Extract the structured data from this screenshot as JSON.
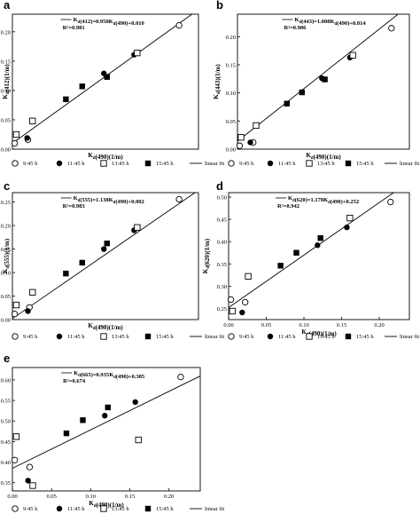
{
  "legend_items": [
    {
      "label": "9:45 h",
      "marker": "open-circle"
    },
    {
      "label": "11:45 h",
      "marker": "filled-circle"
    },
    {
      "label": "13:45 h",
      "marker": "open-square"
    },
    {
      "label": "15:45 h",
      "marker": "filled-square"
    },
    {
      "label": "linear fit",
      "marker": "line"
    }
  ],
  "chart_data": [
    {
      "panel": "a",
      "type": "scatter",
      "equation": "K_d(412)=0.950K_d(490)+0.010",
      "r2": "R²=0.981",
      "xlabel": "K_d(490)(1/m)",
      "ylabel": "K_d(412)(1/m)",
      "xlim": [
        0.0,
        0.24
      ],
      "ylim": [
        0.0,
        0.23
      ],
      "xticks": [],
      "yticks": [
        0.0,
        0.05,
        0.1,
        0.15,
        0.2
      ],
      "fit": {
        "slope": 0.95,
        "intercept": 0.01
      },
      "series": [
        {
          "name": "9:45 h",
          "points": [
            [
              0.003,
              0.01
            ],
            [
              0.02,
              0.016
            ],
            [
              0.215,
              0.211
            ]
          ]
        },
        {
          "name": "11:45 h",
          "points": [
            [
              0.019,
              0.019
            ],
            [
              0.118,
              0.129
            ],
            [
              0.157,
              0.161
            ]
          ]
        },
        {
          "name": "13:45 h",
          "points": [
            [
              0.005,
              0.025
            ],
            [
              0.026,
              0.048
            ],
            [
              0.161,
              0.164
            ]
          ]
        },
        {
          "name": "15:45 h",
          "points": [
            [
              0.069,
              0.085
            ],
            [
              0.09,
              0.107
            ],
            [
              0.122,
              0.123
            ]
          ]
        }
      ]
    },
    {
      "panel": "b",
      "type": "scatter",
      "equation": "K_d(443)=1.008K_d(490)+0.014",
      "r2": "R²=0.986",
      "xlabel": "K_d(490)(1/m)",
      "ylabel": "K_d(443)(1/m)",
      "xlim": [
        0.0,
        0.24
      ],
      "ylim": [
        0.0,
        0.24
      ],
      "xticks": [],
      "yticks": [
        0.0,
        0.05,
        0.1,
        0.15,
        0.2
      ],
      "fit": {
        "slope": 1.008,
        "intercept": 0.014
      },
      "series": [
        {
          "name": "9:45 h",
          "points": [
            [
              0.003,
              0.006
            ],
            [
              0.022,
              0.012
            ],
            [
              0.215,
              0.215
            ]
          ]
        },
        {
          "name": "11:45 h",
          "points": [
            [
              0.018,
              0.012
            ],
            [
              0.118,
              0.126
            ],
            [
              0.157,
              0.163
            ]
          ]
        },
        {
          "name": "13:45 h",
          "points": [
            [
              0.005,
              0.021
            ],
            [
              0.026,
              0.042
            ],
            [
              0.161,
              0.167
            ]
          ]
        },
        {
          "name": "15:45 h",
          "points": [
            [
              0.069,
              0.081
            ],
            [
              0.09,
              0.101
            ],
            [
              0.122,
              0.124
            ]
          ]
        }
      ]
    },
    {
      "panel": "c",
      "type": "scatter",
      "equation": "K_d(555)=1.138K_d(490)+0.002",
      "r2": "R²=0.983",
      "xlabel": "K_d(490)(1/m)",
      "ylabel": "K_d(555)(1/m)",
      "xlim": [
        0.0,
        0.24
      ],
      "ylim": [
        0.0,
        0.27
      ],
      "xticks": [],
      "yticks": [
        0.0,
        0.05,
        0.1,
        0.15,
        0.2,
        0.25
      ],
      "fit": {
        "slope": 1.138,
        "intercept": 0.002
      },
      "series": [
        {
          "name": "9:45 h",
          "points": [
            [
              0.003,
              0.012
            ],
            [
              0.022,
              0.026
            ],
            [
              0.215,
              0.256
            ]
          ]
        },
        {
          "name": "11:45 h",
          "points": [
            [
              0.02,
              0.018
            ],
            [
              0.118,
              0.15
            ],
            [
              0.157,
              0.19
            ]
          ]
        },
        {
          "name": "13:45 h",
          "points": [
            [
              0.005,
              0.031
            ],
            [
              0.026,
              0.058
            ],
            [
              0.161,
              0.196
            ]
          ]
        },
        {
          "name": "15:45 h",
          "points": [
            [
              0.069,
              0.098
            ],
            [
              0.09,
              0.121
            ],
            [
              0.122,
              0.162
            ]
          ]
        }
      ]
    },
    {
      "panel": "d",
      "type": "scatter",
      "equation": "K_d(620)=1.178K_d(490)+0.252",
      "r2": "R²=0.942",
      "xlabel": "K_d(490)(1/m)",
      "ylabel": "K_d(620)(1/m)",
      "xlim": [
        0.0,
        0.24
      ],
      "ylim": [
        0.225,
        0.51
      ],
      "xticks": [
        0.0,
        0.05,
        0.1,
        0.15,
        0.2
      ],
      "yticks": [
        0.25,
        0.3,
        0.35,
        0.4,
        0.45,
        0.5
      ],
      "fit": {
        "slope": 1.178,
        "intercept": 0.252
      },
      "series": [
        {
          "name": "9:45 h",
          "points": [
            [
              0.003,
              0.27
            ],
            [
              0.022,
              0.264
            ],
            [
              0.215,
              0.489
            ]
          ]
        },
        {
          "name": "11:45 h",
          "points": [
            [
              0.018,
              0.241
            ],
            [
              0.118,
              0.392
            ],
            [
              0.157,
              0.432
            ]
          ]
        },
        {
          "name": "13:45 h",
          "points": [
            [
              0.005,
              0.244
            ],
            [
              0.026,
              0.322
            ],
            [
              0.161,
              0.453
            ]
          ]
        },
        {
          "name": "15:45 h",
          "points": [
            [
              0.069,
              0.346
            ],
            [
              0.09,
              0.375
            ],
            [
              0.122,
              0.408
            ]
          ]
        }
      ]
    },
    {
      "panel": "e",
      "type": "scatter",
      "equation": "K_d(665)=0.935K_d(490)+0.385",
      "r2": "R²=0.674",
      "xlabel": "K_d(490)(1/m)",
      "ylabel": "K_d(665)(1/m)",
      "xlim": [
        0.0,
        0.24
      ],
      "ylim": [
        0.33,
        0.63
      ],
      "xticks": [
        0.0,
        0.05,
        0.1,
        0.15,
        0.2
      ],
      "yticks": [
        0.35,
        0.4,
        0.45,
        0.5,
        0.55,
        0.6
      ],
      "fit": {
        "slope": 0.935,
        "intercept": 0.385
      },
      "series": [
        {
          "name": "9:45 h",
          "points": [
            [
              0.003,
              0.405
            ],
            [
              0.022,
              0.388
            ],
            [
              0.215,
              0.607
            ]
          ]
        },
        {
          "name": "11:45 h",
          "points": [
            [
              0.02,
              0.355
            ],
            [
              0.118,
              0.513
            ],
            [
              0.157,
              0.546
            ]
          ]
        },
        {
          "name": "13:45 h",
          "points": [
            [
              0.005,
              0.462
            ],
            [
              0.026,
              0.343
            ],
            [
              0.161,
              0.454
            ]
          ]
        },
        {
          "name": "15:45 h",
          "points": [
            [
              0.069,
              0.47
            ],
            [
              0.09,
              0.502
            ],
            [
              0.122,
              0.533
            ]
          ]
        }
      ]
    }
  ]
}
